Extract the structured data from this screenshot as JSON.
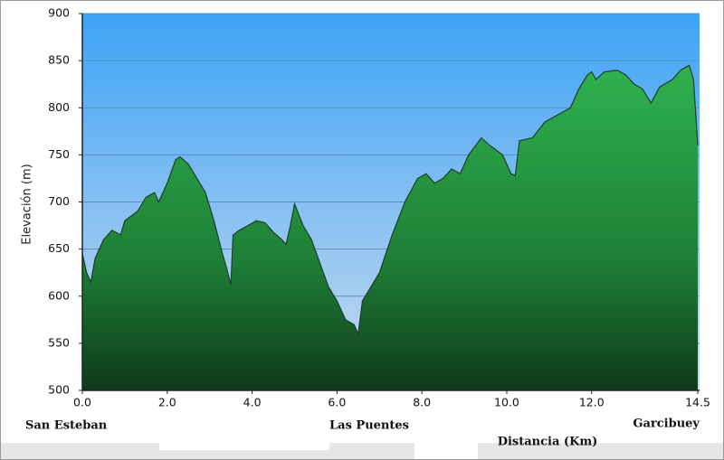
{
  "chart_data": {
    "type": "area",
    "y_label": "Elevación (m)",
    "x_label": "Distancia (Km)",
    "place_labels": [
      "San Esteban",
      "Las Puentes",
      "Garcibuey"
    ],
    "color": "#27a146",
    "grid": true,
    "xlim": [
      0,
      14.5
    ],
    "ylim": [
      500,
      900
    ],
    "xticks": [
      {
        "value": 0,
        "label": "0.0"
      },
      {
        "value": 2,
        "label": "2.0"
      },
      {
        "value": 4,
        "label": "4.0"
      },
      {
        "value": 6,
        "label": "6.0"
      },
      {
        "value": 8,
        "label": "8.0"
      },
      {
        "value": 10,
        "label": "10.0"
      },
      {
        "value": 12,
        "label": "12.0"
      },
      14.5
    ],
    "yticks": [
      500,
      550,
      600,
      650,
      700,
      750,
      800,
      850,
      900
    ],
    "x": [
      0,
      0.1,
      0.2,
      0.3,
      0.5,
      0.7,
      0.9,
      1.0,
      1.3,
      1.5,
      1.7,
      1.8,
      2.0,
      2.2,
      2.3,
      2.5,
      2.7,
      2.9,
      3.1,
      3.3,
      3.4,
      3.5,
      3.55,
      3.7,
      3.9,
      4.1,
      4.3,
      4.5,
      4.7,
      4.8,
      4.9,
      5.0,
      5.2,
      5.4,
      5.6,
      5.8,
      6.0,
      6.2,
      6.4,
      6.5,
      6.6,
      6.8,
      7.0,
      7.3,
      7.6,
      7.9,
      8.1,
      8.3,
      8.5,
      8.7,
      8.9,
      9.1,
      9.4,
      9.6,
      9.9,
      10.1,
      10.2,
      10.3,
      10.6,
      10.9,
      11.1,
      11.3,
      11.5,
      11.7,
      11.9,
      12.0,
      12.1,
      12.3,
      12.6,
      12.8,
      13.0,
      13.2,
      13.4,
      13.6,
      13.9,
      14.1,
      14.3,
      14.4,
      14.5
    ],
    "values": [
      645,
      625,
      615,
      640,
      660,
      670,
      665,
      680,
      690,
      705,
      710,
      700,
      720,
      745,
      748,
      740,
      725,
      710,
      680,
      645,
      630,
      612,
      665,
      670,
      675,
      680,
      678,
      668,
      660,
      655,
      675,
      698,
      675,
      660,
      635,
      610,
      595,
      575,
      570,
      560,
      595,
      610,
      625,
      665,
      700,
      725,
      730,
      720,
      725,
      735,
      730,
      750,
      768,
      760,
      750,
      730,
      728,
      765,
      768,
      785,
      790,
      795,
      800,
      820,
      835,
      838,
      830,
      838,
      840,
      835,
      825,
      820,
      805,
      822,
      830,
      840,
      845,
      830,
      760
    ]
  }
}
